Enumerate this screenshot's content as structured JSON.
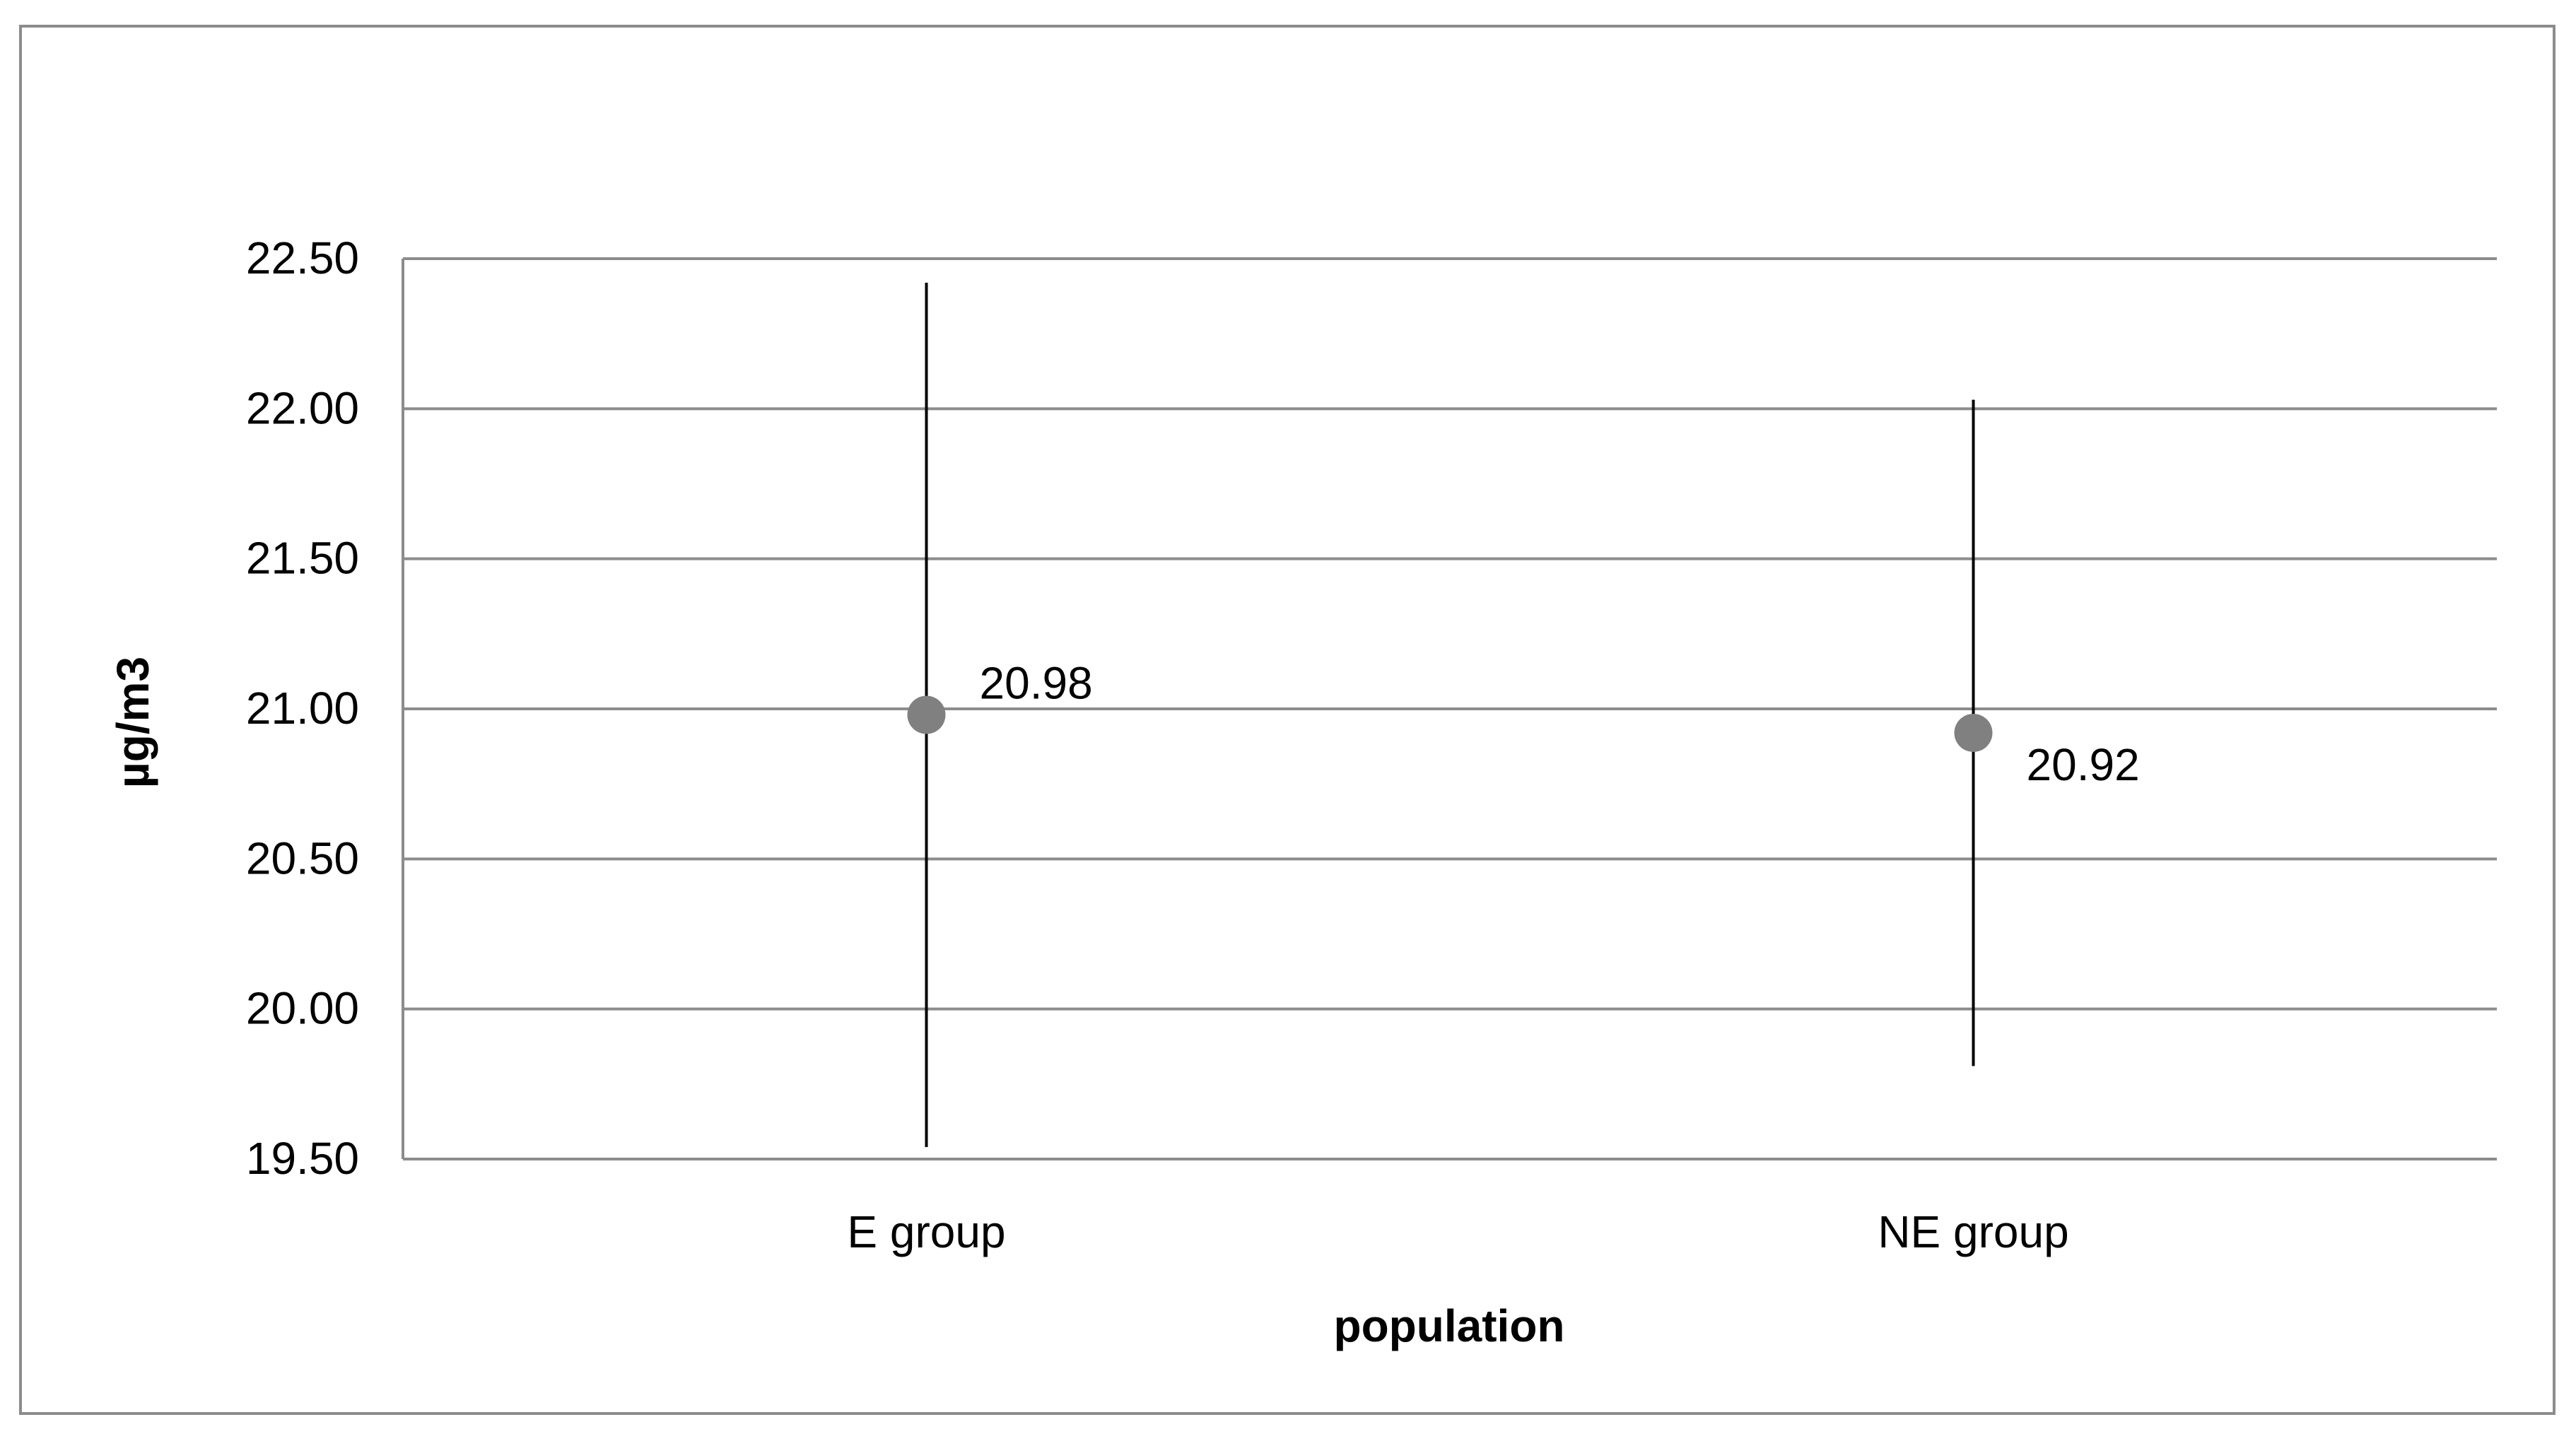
{
  "chart_data": {
    "type": "scatter",
    "title": "",
    "xlabel": "population",
    "ylabel": "µg/m3",
    "categories": [
      "E group",
      "NE group"
    ],
    "ylim": [
      19.5,
      22.5
    ],
    "yticks": [
      19.5,
      20.0,
      20.5,
      21.0,
      21.5,
      22.0,
      22.5
    ],
    "ytick_labels": [
      "19.50",
      "20.00",
      "20.50",
      "21.00",
      "21.50",
      "22.00",
      "22.50"
    ],
    "values": [
      20.98,
      20.92
    ],
    "data_labels": [
      "20.98",
      "20.92"
    ],
    "error_bars": [
      {
        "low": 19.54,
        "high": 22.42
      },
      {
        "low": 19.81,
        "high": 22.03
      }
    ],
    "grid": true,
    "marker_color": "#808080",
    "gridline_color": "#8c8c8c",
    "errorbar_color": "#000000",
    "legend": "none"
  }
}
